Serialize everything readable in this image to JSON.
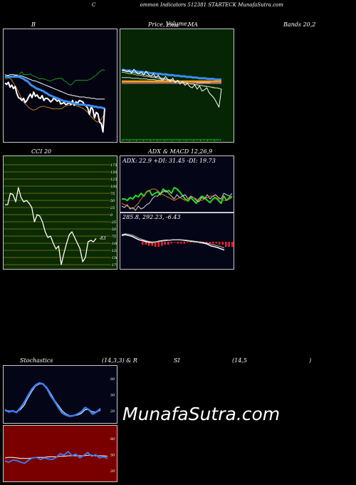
{
  "header": {
    "title_c": "C",
    "title_rest": "ommon  Indicators 512381 STARTECK MunafaSutra.com"
  },
  "labels": {
    "p1_left": "B",
    "p2_left": "Price,",
    "p2_mid": "Volume,",
    "p2_mid2": "Ema",
    "p2_right": "MA",
    "p3_left": "Bands 20,2",
    "cci": "CCI 20",
    "adx_left": "ADX",
    "adx_right": "& MACD 12,26,9",
    "adx_values": "ADX: 22.9  +DI: 31.45  -DI: 19.73",
    "macd_values": "285.8,  292.23,  -6.43",
    "stoch_left": "Stochastics",
    "stoch_mid": "(14,3,3) & R",
    "rsi_left": "SI",
    "rsi_mid": "(14,5",
    "rsi_right": ")",
    "watermark": "MunafaSutra.com"
  },
  "colors": {
    "bg": "#000000",
    "bollinger_bg": "#030312",
    "price_bg": "#052505",
    "cci_bg": "#0a2a02",
    "adx_bg": "#050518",
    "stoch_bg": "#050518",
    "rsi_bg": "#7a0000"
  },
  "chart_data": [
    {
      "type": "line",
      "name": "bollinger_bands",
      "series": [
        {
          "name": "",
          "values": [
            76,
            76,
            75,
            75,
            72,
            72,
            70,
            70,
            71,
            68,
            66,
            70,
            70,
            70,
            70,
            69,
            71,
            72,
            73,
            74,
            76,
            76,
            76,
            76,
            77,
            78,
            79,
            79,
            78,
            77,
            76,
            76,
            75,
            75,
            76,
            79,
            80,
            82,
            84,
            85,
            83,
            80,
            78,
            78,
            78,
            78,
            78,
            78,
            78,
            78,
            77,
            76,
            74,
            72,
            71,
            68,
            66,
            64,
            63,
            64
          ]
        },
        {
          "name": "",
          "values": [
            70,
            71,
            71,
            70,
            70,
            70,
            71,
            71,
            72,
            72,
            72,
            73,
            74,
            75,
            76,
            77,
            78,
            79,
            79,
            80,
            81,
            82,
            83,
            84,
            85,
            86,
            87,
            88,
            89,
            90,
            91,
            92,
            93,
            94,
            95,
            96,
            97,
            98,
            99,
            99,
            100,
            100,
            101,
            101,
            102,
            102,
            102,
            102,
            103,
            103,
            103,
            104,
            104,
            104,
            105,
            105,
            105,
            105,
            105,
            105
          ]
        },
        {
          "name": "",
          "values": [
            74,
            73,
            73,
            73,
            73,
            73,
            73,
            73,
            73,
            74,
            75,
            76,
            78,
            79,
            81,
            84,
            86,
            87,
            89,
            90,
            91,
            92,
            93,
            94,
            96,
            97,
            99,
            100,
            101,
            102,
            103,
            104,
            105,
            106,
            107,
            108,
            108,
            109,
            109,
            110,
            111,
            111,
            112,
            112,
            113,
            113,
            113,
            113,
            114,
            114,
            114,
            115,
            115,
            116,
            116,
            117,
            117,
            117,
            118,
            118
          ]
        },
        {
          "name": "",
          "values": [
            72,
            72,
            73,
            75,
            78,
            82,
            86,
            90,
            95,
            100,
            105,
            109,
            112,
            114,
            117,
            119,
            120,
            121,
            120,
            119,
            117,
            116,
            116,
            115,
            116,
            117,
            117,
            118,
            119,
            119,
            119,
            119,
            119,
            119,
            118,
            116,
            115,
            114,
            114,
            113,
            113,
            113,
            114,
            115,
            116,
            117,
            118,
            120,
            122,
            124,
            127,
            130,
            133,
            135,
            137,
            138,
            136,
            134,
            130,
            126
          ]
        },
        {
          "name": "",
          "values": [
            82,
            84,
            81,
            88,
            85,
            90,
            87,
            97,
            103,
            104,
            107,
            104,
            110,
            107,
            102,
            98,
            103,
            95,
            101,
            99,
            103,
            104,
            100,
            107,
            104,
            104,
            106,
            109,
            107,
            103,
            106,
            108,
            106,
            112,
            111,
            110,
            113,
            112,
            110,
            113,
            107,
            114,
            109,
            111,
            107,
            108,
            109,
            113,
            115,
            118,
            127,
            116,
            120,
            132,
            124,
            126,
            138,
            140,
            152,
            118
          ]
        }
      ]
    },
    {
      "type": "line",
      "name": "price_volume_ema_ma",
      "series": [
        {
          "name": "",
          "values": [
            100,
            100,
            101,
            101,
            101,
            102,
            102,
            102,
            103,
            103,
            103,
            104,
            104,
            104,
            105,
            105,
            105,
            106,
            106,
            106,
            107,
            107,
            107,
            108,
            108,
            108,
            109,
            109,
            109,
            110,
            110,
            110,
            111,
            111,
            111,
            112,
            112,
            112,
            113,
            113,
            113,
            113,
            114,
            114,
            114,
            114,
            115,
            115,
            115,
            115
          ]
        },
        {
          "name": "",
          "values": [
            101,
            102,
            102,
            103,
            103,
            104,
            104,
            105,
            106,
            106,
            107,
            107,
            108,
            109,
            109,
            110,
            110,
            111,
            111,
            112,
            113,
            113,
            114,
            115,
            115,
            116,
            117,
            118,
            118,
            119,
            119,
            120,
            120,
            121,
            122,
            122,
            123,
            123,
            124,
            124,
            125,
            125,
            126,
            126,
            127,
            127,
            128,
            128,
            129,
            130
          ]
        },
        {
          "name": "",
          "values": [
            112,
            112,
            112,
            112,
            112,
            113,
            113,
            113,
            113,
            114,
            114,
            114,
            114,
            115,
            115,
            115,
            115,
            116,
            116,
            116,
            116,
            117,
            117,
            117,
            117,
            118,
            118,
            118,
            118,
            118,
            118,
            119,
            119,
            119,
            119,
            119,
            119,
            120,
            120,
            120,
            120,
            120,
            120,
            120,
            121,
            121,
            121,
            121,
            121,
            121
          ]
        },
        {
          "name": "",
          "values": [
            118,
            118,
            118,
            118,
            118,
            118,
            118,
            118,
            118,
            118,
            118,
            118,
            118,
            118,
            118,
            118,
            118,
            118,
            118,
            118,
            118,
            118,
            118,
            118,
            118,
            118,
            118,
            118,
            118,
            118,
            118,
            118,
            118,
            118,
            118,
            118,
            118,
            118,
            118,
            118,
            118,
            118,
            118,
            118,
            118,
            118,
            118,
            118,
            118,
            118
          ]
        },
        {
          "name": "",
          "values": [
            121,
            121,
            121,
            121,
            121,
            121,
            121,
            121,
            121,
            121,
            121,
            121,
            121,
            121,
            121,
            121,
            121,
            121,
            121,
            121,
            121,
            121,
            121,
            121,
            121,
            121,
            121,
            121,
            121,
            121,
            121,
            121,
            121,
            121,
            121,
            121,
            121,
            121,
            121,
            121,
            121,
            121,
            121,
            121,
            121,
            121,
            121,
            121,
            121,
            121
          ]
        },
        {
          "name": "",
          "values": [
            104,
            104,
            105,
            106,
            106,
            107,
            108,
            108,
            109,
            110,
            110,
            111,
            112,
            112,
            113,
            114,
            114,
            115,
            116,
            116,
            117,
            118,
            118,
            119,
            120,
            120,
            121,
            122,
            122,
            123,
            124,
            124,
            125,
            126,
            126,
            127,
            128,
            128,
            129,
            130
          ]
        },
        {
          "name": "",
          "values": [
            101,
            100,
            103,
            101,
            105,
            99,
            104,
            106,
            103,
            108,
            102,
            107,
            110,
            106,
            112,
            108,
            114,
            116,
            110,
            115,
            118,
            113,
            120,
            116,
            122,
            118,
            124,
            121,
            126,
            128,
            123,
            130,
            125,
            133,
            131,
            128,
            136,
            140,
            144,
            151,
            158,
            130
          ]
        }
      ]
    },
    {
      "type": "line",
      "name": "cci_20",
      "ylim": [
        -175,
        175
      ],
      "series": [
        {
          "name": "",
          "values": [
            35,
            35,
            75,
            70,
            45,
            95,
            60,
            45,
            50,
            40,
            25,
            -25,
            0,
            -5,
            -25,
            -60,
            -80,
            -75,
            -100,
            -120,
            -110,
            -175,
            -135,
            -100,
            -70,
            -60,
            -80,
            -100,
            -120,
            -165,
            -150,
            -95,
            -90,
            -95,
            -83
          ]
        }
      ]
    },
    {
      "type": "line",
      "name": "adx_dmi",
      "series": [
        {
          "name": "",
          "values": [
            60,
            60,
            62,
            58,
            60,
            55,
            57,
            52,
            56,
            50,
            48,
            55,
            52,
            50,
            54,
            46,
            50,
            48,
            52,
            44,
            46,
            50,
            55,
            60,
            63,
            58,
            62,
            66,
            60,
            56,
            58,
            62,
            65,
            60,
            58,
            62,
            66,
            56,
            62,
            58,
            56
          ]
        },
        {
          "name": "",
          "values": [
            70,
            72,
            68,
            74,
            72,
            76,
            70,
            74,
            72,
            68,
            66,
            60,
            56,
            56,
            52,
            50,
            48,
            52,
            56,
            60,
            54,
            58,
            56,
            54,
            60,
            56,
            58,
            62,
            64,
            58,
            60,
            54,
            60,
            56,
            54,
            58,
            60,
            52,
            54,
            56,
            52
          ]
        },
        {
          "name": "",
          "values": [
            66,
            68,
            70,
            72,
            74,
            70,
            66,
            60,
            55,
            50,
            48,
            46,
            46,
            48,
            52,
            54,
            56,
            58,
            60,
            62,
            60,
            58,
            60,
            62,
            60,
            58,
            58,
            60,
            62,
            62,
            60,
            58,
            56,
            56,
            58,
            60,
            60,
            62,
            62,
            60,
            58
          ]
        }
      ]
    },
    {
      "type": "line",
      "name": "macd",
      "series": [
        {
          "name": "",
          "values": [
            338,
            340,
            338,
            336,
            332,
            328,
            326,
            324,
            322,
            322,
            323,
            325,
            326,
            327,
            327,
            328,
            328,
            328,
            327,
            326,
            325,
            324,
            323,
            322,
            320,
            318,
            314,
            312,
            310,
            307,
            304
          ]
        },
        {
          "name": "",
          "values": [
            340,
            342,
            341,
            339,
            336,
            332,
            329,
            326,
            324,
            323,
            323,
            324,
            325,
            326,
            327,
            328,
            328,
            328,
            328,
            327,
            326,
            325,
            324,
            323,
            322,
            320,
            318,
            316,
            314,
            312,
            309
          ]
        },
        {
          "name": "",
          "values": [
            -2,
            -2,
            -3,
            -3,
            -4,
            -4,
            -3,
            -2,
            -2,
            -1,
            0,
            1,
            1,
            1,
            0,
            0,
            0,
            0,
            -1,
            -1,
            -1,
            -1,
            -1,
            -1,
            -2,
            -2,
            -4,
            -4,
            -4,
            -5,
            -5
          ]
        }
      ]
    },
    {
      "type": "line",
      "name": "stochastics",
      "ylim": [
        0,
        100
      ],
      "series": [
        {
          "name": "",
          "values": [
            22,
            18,
            20,
            17,
            25,
            35,
            48,
            60,
            68,
            72,
            70,
            62,
            48,
            38,
            26,
            16,
            12,
            10,
            11,
            14,
            18,
            26,
            22,
            14,
            18,
            24
          ]
        },
        {
          "name": "",
          "values": [
            20,
            20,
            19,
            18,
            22,
            30,
            44,
            56,
            66,
            70,
            70,
            64,
            52,
            40,
            30,
            20,
            14,
            11,
            11,
            12,
            15,
            22,
            22,
            18,
            18,
            21
          ]
        }
      ]
    },
    {
      "type": "line",
      "name": "rsi",
      "ylim": [
        0,
        100
      ],
      "series": [
        {
          "name": "",
          "values": [
            38,
            36,
            40,
            39,
            36,
            34,
            40,
            44,
            45,
            41,
            44,
            42,
            41,
            45,
            52,
            49,
            56,
            48,
            51,
            44,
            49,
            54,
            47,
            50,
            44,
            46,
            43
          ]
        },
        {
          "name": "",
          "values": [
            44,
            45,
            45,
            44,
            43,
            43,
            43,
            44,
            45,
            45,
            45,
            46,
            46,
            46,
            47,
            47,
            48,
            48,
            48,
            48,
            48,
            49,
            49,
            48,
            48,
            48,
            47
          ]
        }
      ]
    }
  ]
}
